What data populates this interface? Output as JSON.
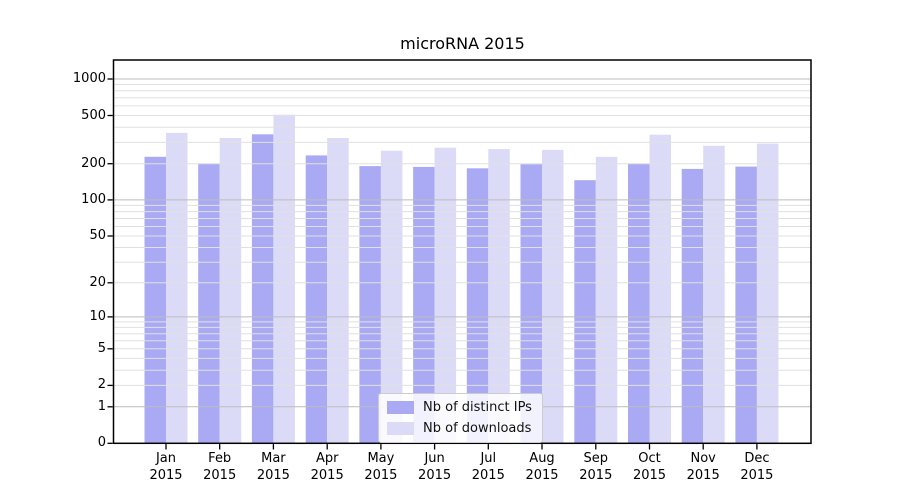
{
  "title": "microRNA 2015",
  "colors": {
    "ips_bar": "#aaaaf4",
    "downloads_bar": "#dbdbf8",
    "grid_major": "#bcbcbc",
    "grid_minor": "#e0e0e0",
    "spine": "#000000",
    "text": "#000000",
    "legend_border": "#cccccc"
  },
  "chart_data": {
    "type": "bar",
    "title": "microRNA 2015",
    "xlabel": "",
    "ylabel": "",
    "x_year": "2015",
    "categories": [
      "Jan",
      "Feb",
      "Mar",
      "Apr",
      "May",
      "Jun",
      "Jul",
      "Aug",
      "Sep",
      "Oct",
      "Nov",
      "Dec"
    ],
    "series": [
      {
        "name": "Nb of distinct IPs",
        "color": "#aaaaf4",
        "values": [
          228,
          201,
          350,
          234,
          191,
          188,
          183,
          198,
          146,
          201,
          181,
          189
        ]
      },
      {
        "name": "Nb of downloads",
        "color": "#dbdbf8",
        "values": [
          359,
          326,
          508,
          326,
          256,
          271,
          264,
          260,
          228,
          347,
          281,
          293
        ]
      }
    ],
    "yscale": "symlog (y proportional to log10(1+value))",
    "yticks": [
      1000,
      500,
      200,
      100,
      50,
      20,
      10,
      5,
      2,
      1,
      0
    ],
    "ymajor_gridlines": [
      1,
      10,
      100,
      1000
    ],
    "ylim": [
      0,
      1434
    ],
    "grid": true,
    "legend_position": "lower center inside plot"
  }
}
